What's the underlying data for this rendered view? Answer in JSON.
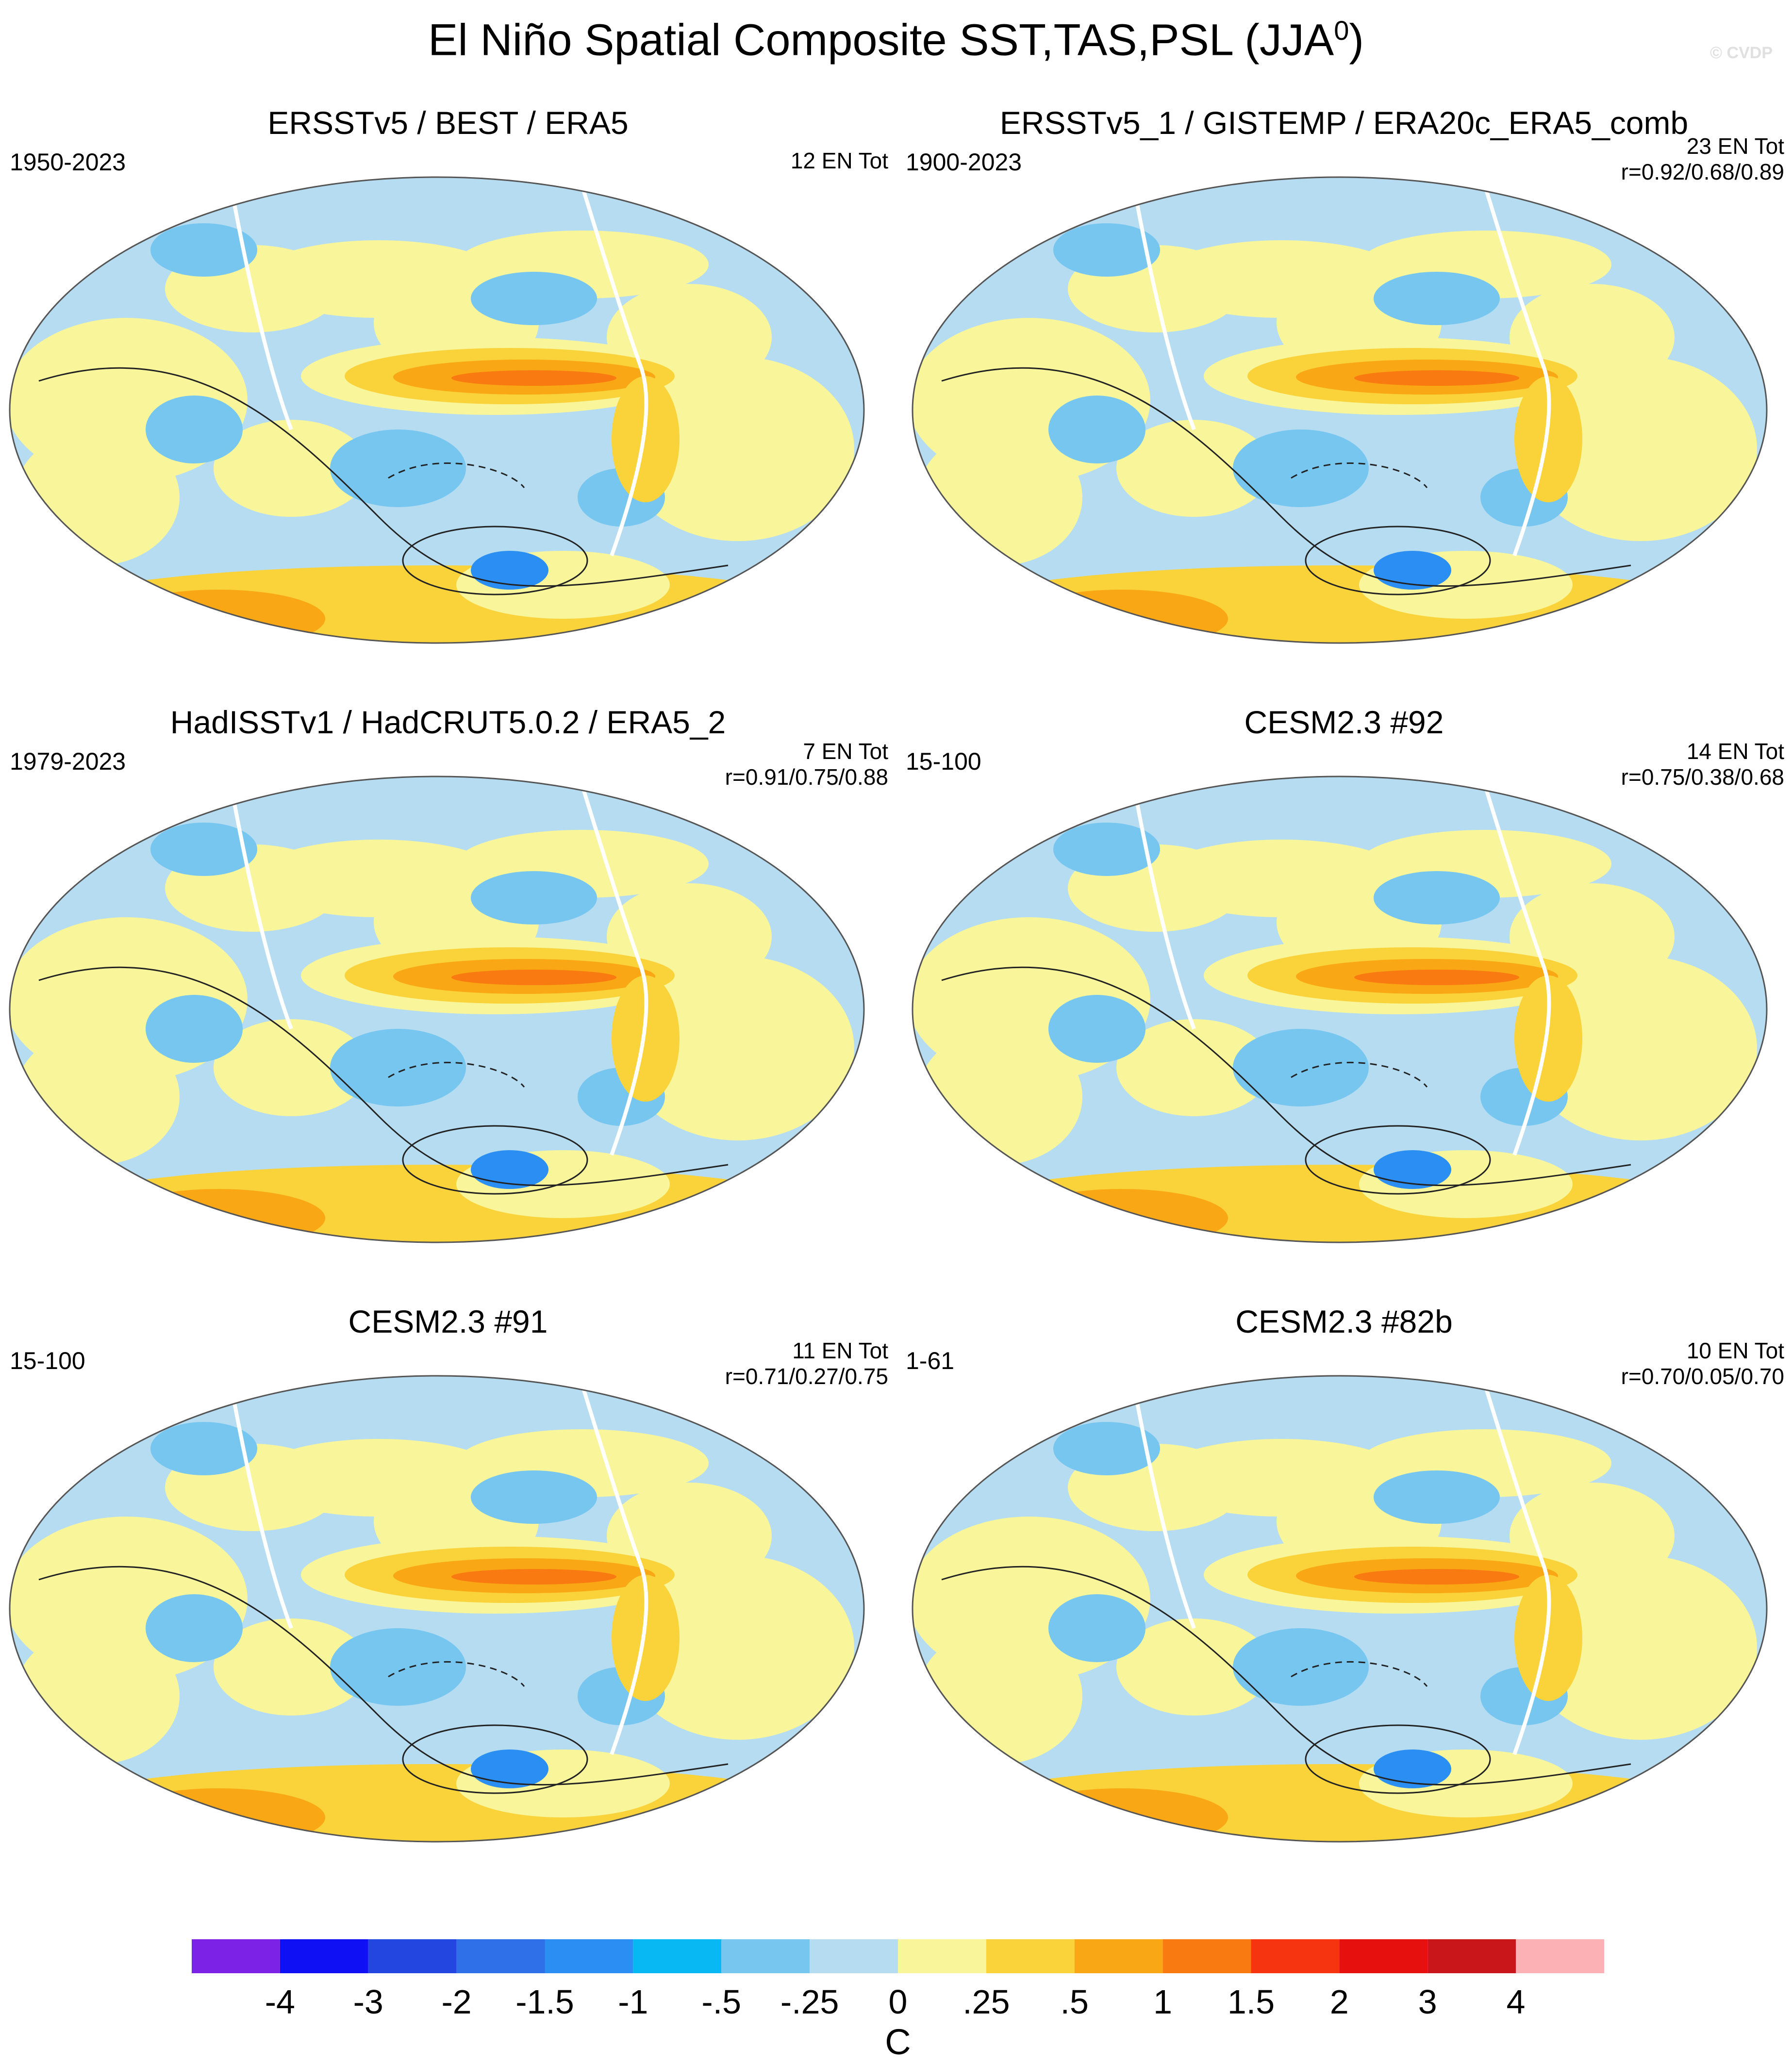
{
  "figure": {
    "title": "El Niño Spatial Composite SST,TAS,PSL (JJA",
    "title_superscript": "0",
    "title_close": ")",
    "watermark": "© CVDP"
  },
  "panels": [
    {
      "title": "ERSSTv5 / BEST / ERA5",
      "period": "1950-2023",
      "count": "12 EN Tot",
      "corr": ""
    },
    {
      "title": "ERSSTv5_1 / GISTEMP / ERA20c_ERA5_comb",
      "period": "1900-2023",
      "count": "23 EN Tot",
      "corr": "r=0.92/0.68/0.89"
    },
    {
      "title": "HadISSTv1 / HadCRUT5.0.2 / ERA5_2",
      "period": "1979-2023",
      "count": "7 EN Tot",
      "corr": "r=0.91/0.75/0.88"
    },
    {
      "title": "CESM2.3 #92",
      "period": "15-100",
      "count": "14 EN Tot",
      "corr": "r=0.75/0.38/0.68"
    },
    {
      "title": "CESM2.3 #91",
      "period": "15-100",
      "count": "11 EN Tot",
      "corr": "r=0.71/0.27/0.75"
    },
    {
      "title": "CESM2.3 #82b",
      "period": "1-61",
      "count": "10 EN Tot",
      "corr": "r=0.70/0.05/0.70"
    }
  ],
  "colorbar": {
    "labels": [
      "-4",
      "-3",
      "-2",
      "-1.5",
      "-1",
      "-.5",
      "-.25",
      "0",
      ".25",
      ".5",
      "1",
      "1.5",
      "2",
      "3",
      "4"
    ],
    "colors": [
      "#7b22e6",
      "#1010f5",
      "#2446e0",
      "#2f6fe8",
      "#2a8ef2",
      "#08b8f2",
      "#76c6ef",
      "#b5dcf1",
      "#f8f59a",
      "#fad23a",
      "#f9a714",
      "#f97a11",
      "#f73410",
      "#e6100e",
      "#c9161b",
      "#fcb2b4"
    ],
    "unit": "C"
  },
  "legend": {
    "ocean_cool": "#b5dcf1",
    "warm_light": "#f8f59a",
    "warm": "#fad23a",
    "warm_strong": "#f9a714",
    "warm_peak": "#f97a11",
    "cool": "#76c6ef",
    "cool_strong": "#2a8ef2"
  }
}
